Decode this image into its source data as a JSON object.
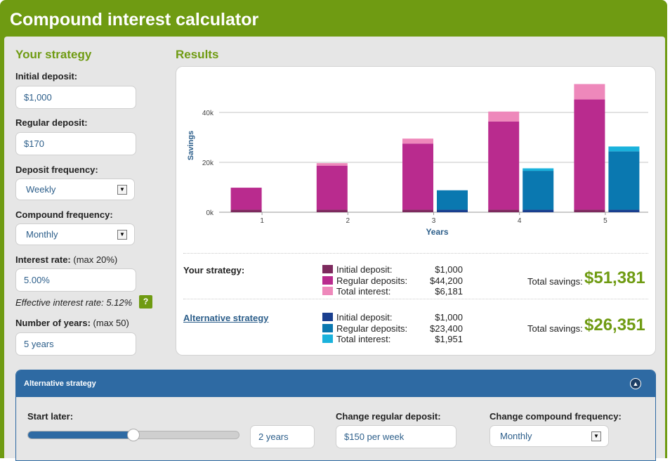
{
  "header": {
    "title": "Compound interest calculator"
  },
  "strategy": {
    "heading": "Your strategy",
    "initial_deposit": {
      "label": "Initial deposit:",
      "value": "$1,000"
    },
    "regular_deposit": {
      "label": "Regular deposit:",
      "value": "$170"
    },
    "deposit_frequency": {
      "label": "Deposit frequency:",
      "value": "Weekly"
    },
    "compound_frequency": {
      "label": "Compound frequency:",
      "value": "Monthly"
    },
    "interest_rate": {
      "label": "Interest rate:",
      "note": "(max 20%)",
      "value": "5.00%"
    },
    "effective_rate": "Effective interest rate: 5.12%",
    "help_icon": "?",
    "years": {
      "label": "Number of years:",
      "note": "(max 50)",
      "value": "5 years"
    }
  },
  "results": {
    "heading": "Results",
    "your_strategy": {
      "label": "Your strategy:",
      "legend": [
        {
          "name": "Initial deposit:",
          "value": "$1,000",
          "color": "#7d2a5e"
        },
        {
          "name": "Regular deposits:",
          "value": "$44,200",
          "color": "#b92b8e"
        },
        {
          "name": "Total interest:",
          "value": "$6,181",
          "color": "#ee88bb"
        }
      ],
      "total_label": "Total savings:",
      "total_value": "$51,381"
    },
    "alternative_strategy": {
      "label": "Alternative strategy",
      "legend": [
        {
          "name": "Initial deposit:",
          "value": "$1,000",
          "color": "#1a3f8f"
        },
        {
          "name": "Regular deposits:",
          "value": "$23,400",
          "color": "#0a78b0"
        },
        {
          "name": "Total interest:",
          "value": "$1,951",
          "color": "#1ab2dc"
        }
      ],
      "total_label": "Total savings:",
      "total_value": "$26,351"
    }
  },
  "chart_data": {
    "type": "bar",
    "stacked": true,
    "xlabel": "Years",
    "ylabel": "Savings",
    "categories": [
      "1",
      "2",
      "3",
      "4",
      "5"
    ],
    "yticks": [
      "0k",
      "20k",
      "40k"
    ],
    "ylim": [
      0,
      50000
    ],
    "grid": true,
    "groups": [
      {
        "name": "Your strategy",
        "series": [
          {
            "name": "Initial deposit",
            "color": "#7d2a5e",
            "values": [
              1000,
              1000,
              1000,
              1000,
              1000
            ]
          },
          {
            "name": "Regular deposits",
            "color": "#b92b8e",
            "values": [
              8840,
              17680,
              26520,
              35360,
              44200
            ]
          },
          {
            "name": "Total interest",
            "color": "#ee88bb",
            "values": [
              0,
              1000,
              2000,
              4000,
              6181
            ]
          }
        ]
      },
      {
        "name": "Alternative strategy",
        "series": [
          {
            "name": "Initial deposit",
            "color": "#1a3f8f",
            "values": [
              0,
              0,
              1000,
              1000,
              1000
            ]
          },
          {
            "name": "Regular deposits",
            "color": "#0a78b0",
            "values": [
              0,
              0,
              7800,
              15600,
              23400
            ]
          },
          {
            "name": "Total interest",
            "color": "#1ab2dc",
            "values": [
              0,
              0,
              0,
              1000,
              1951
            ]
          }
        ]
      }
    ]
  },
  "alt_panel": {
    "title": "Alternative strategy",
    "collapse_icon": "chevron-up-icon",
    "start_later": {
      "label": "Start later:",
      "value": "2 years",
      "slider_fraction": 0.5
    },
    "change_deposit": {
      "label": "Change regular deposit:",
      "value": "$150 per week"
    },
    "change_compound": {
      "label": "Change compound frequency:",
      "value": "Monthly"
    }
  }
}
